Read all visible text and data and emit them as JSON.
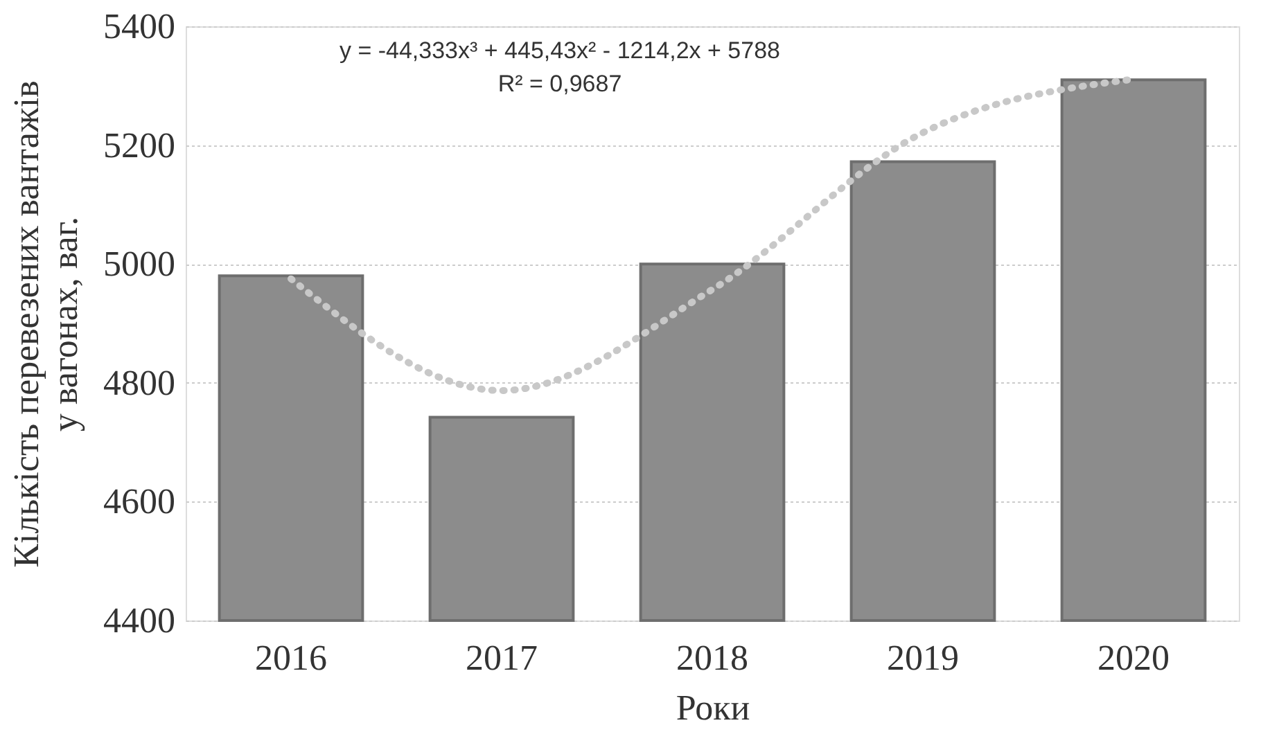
{
  "chart_data": {
    "type": "bar",
    "xlabel": "Роки",
    "ylabel": "Кількість перевезених вантажів у вагонах, ваг.",
    "categories": [
      "2016",
      "2017",
      "2018",
      "2019",
      "2020"
    ],
    "series": [
      {
        "color": "#8c8c8c",
        "values": [
          4980,
          4742,
          5000,
          5172,
          5310
        ]
      },
      {
        "type": "line",
        "color": "#c8c8c8",
        "line_style": "dotted",
        "values": [
          4975,
          4787,
          4957,
          5221,
          5311
        ]
      }
    ],
    "ylim": [
      4400,
      5400
    ],
    "yticks": [
      4400,
      4600,
      4800,
      5000,
      5200,
      5400
    ],
    "grid": "y",
    "annotations": [
      "y = -44,333x³ + 445,43x² - 1214,2x + 5788",
      "R² = 0,9687"
    ]
  }
}
